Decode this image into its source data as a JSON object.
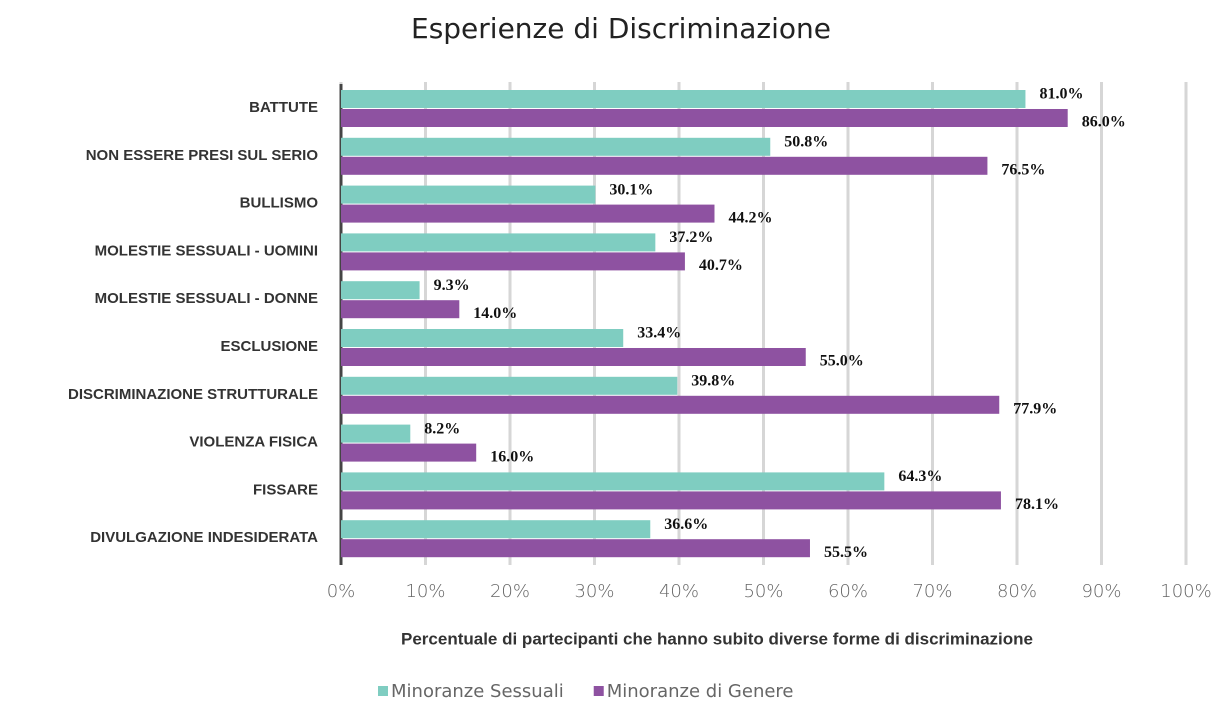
{
  "chart_data": {
    "type": "bar",
    "orientation": "horizontal",
    "title": "Esperienze di Discriminazione",
    "xlabel": "Percentuale di partecipanti che hanno subito diverse forme di discriminazione",
    "categories": [
      "BATTUTE",
      "NON ESSERE PRESI SUL SERIO",
      "BULLISMO",
      "MOLESTIE SESSUALI - UOMINI",
      "MOLESTIE SESSUALI - DONNE",
      "ESCLUSIONE",
      "DISCRIMINAZIONE STRUTTURALE",
      "VIOLENZA FISICA",
      "FISSARE",
      "DIVULGAZIONE INDESIDERATA"
    ],
    "series": [
      {
        "name": "Minoranze Sessuali",
        "color": "#7fcdc1",
        "values": [
          81.0,
          50.8,
          30.1,
          37.2,
          9.3,
          33.4,
          39.8,
          8.2,
          64.3,
          36.6
        ],
        "value_labels": [
          "81.0%",
          "50.8%",
          "30.1%",
          "37.2%",
          "9.3%",
          "33.4%",
          "39.8%",
          "8.2%",
          "64.3%",
          "36.6%"
        ]
      },
      {
        "name": "Minoranze di Genere",
        "color": "#8e52a1",
        "values": [
          86.0,
          76.5,
          44.2,
          40.7,
          14.0,
          55.0,
          77.9,
          16.0,
          78.1,
          55.5
        ],
        "value_labels": [
          "86.0%",
          "76.5%",
          "44.2%",
          "40.7%",
          "14.0%",
          "55.0%",
          "77.9%",
          "16.0%",
          "78.1%",
          "55.5%"
        ]
      }
    ],
    "xlim": [
      0,
      100
    ],
    "xticks": [
      {
        "value": 0,
        "label": "0%"
      },
      {
        "value": 10,
        "label": "10%"
      },
      {
        "value": 20,
        "label": "20%"
      },
      {
        "value": 30,
        "label": "30%"
      },
      {
        "value": 40,
        "label": "40%"
      },
      {
        "value": 50,
        "label": "50%"
      },
      {
        "value": 60,
        "label": "60%"
      },
      {
        "value": 70,
        "label": "70%"
      },
      {
        "value": 80,
        "label": "80%"
      },
      {
        "value": 90,
        "label": "90%"
      },
      {
        "value": 100,
        "label": "100%"
      }
    ],
    "grid": true,
    "legend": "bottom"
  }
}
